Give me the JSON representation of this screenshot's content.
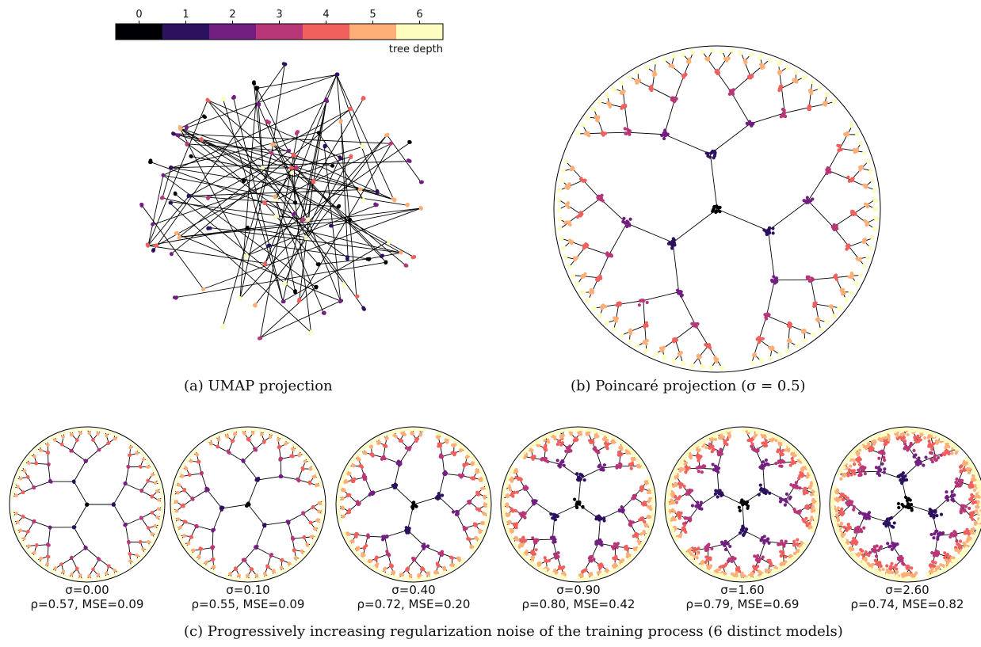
{
  "colorbar": {
    "ticks": [
      "0",
      "1",
      "2",
      "3",
      "4",
      "5",
      "6"
    ],
    "label": "tree depth",
    "colors": [
      "#000004",
      "#2c115f",
      "#721f81",
      "#b73779",
      "#f1605d",
      "#feaf77",
      "#fcfdbf"
    ]
  },
  "captions": {
    "a": "(a) UMAP projection",
    "b": "(b) Poincaré projection (σ = 0.5)",
    "c": "(c) Progressively increasing regularization noise of the training process (6 distinct models)"
  },
  "chart_data": [
    {
      "type": "scatter",
      "panel": "a",
      "title": "",
      "description_of_points": "UMAP 2D projection of tree nodes colored by tree depth (0–6), edges connect parent/child nodes",
      "color_scale": {
        "label": "tree depth",
        "min": 0,
        "max": 6
      }
    },
    {
      "type": "scatter",
      "panel": "b",
      "title": "",
      "sigma": 0.5,
      "color_scale": {
        "label": "tree depth",
        "min": 0,
        "max": 6
      }
    },
    {
      "type": "scatter",
      "panel": "c",
      "models": [
        {
          "sigma_label": "σ=0.00",
          "metrics_label": "ρ=0.57, MSE=0.09",
          "sigma": 0.0,
          "rho": 0.57,
          "mse": 0.09
        },
        {
          "sigma_label": "σ=0.10",
          "metrics_label": "ρ=0.55, MSE=0.09",
          "sigma": 0.1,
          "rho": 0.55,
          "mse": 0.09
        },
        {
          "sigma_label": "σ=0.40",
          "metrics_label": "ρ=0.72, MSE=0.20",
          "sigma": 0.4,
          "rho": 0.72,
          "mse": 0.2
        },
        {
          "sigma_label": "σ=0.90",
          "metrics_label": "ρ=0.80, MSE=0.42",
          "sigma": 0.9,
          "rho": 0.8,
          "mse": 0.42
        },
        {
          "sigma_label": "σ=1.60",
          "metrics_label": "ρ=0.79, MSE=0.69",
          "sigma": 1.6,
          "rho": 0.79,
          "mse": 0.69
        },
        {
          "sigma_label": "σ=2.60",
          "metrics_label": "ρ=0.74, MSE=0.82",
          "sigma": 2.6,
          "rho": 0.74,
          "mse": 0.82
        }
      ]
    }
  ]
}
